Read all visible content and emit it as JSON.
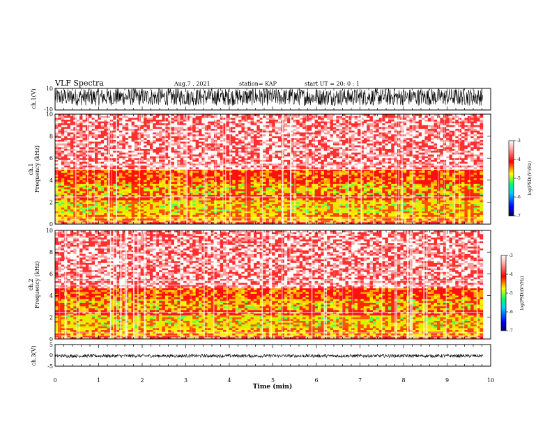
{
  "header": {
    "title": "VLF Spectra",
    "date": "Aug.7 , 2021",
    "station": "station= KAP",
    "start_ut": "start UT = 20: 0 : 1"
  },
  "colors": {
    "spectrogram_base": "#ff2a2a",
    "waveform": "#000000",
    "colormap": [
      "#000066",
      "#0000ff",
      "#00c8ff",
      "#00ff66",
      "#ffff00",
      "#ff0000",
      "#ffb0b0",
      "#ffffff"
    ]
  },
  "chart_data": [
    {
      "type": "line",
      "panel": "ch1-waveform",
      "ylabel": "ch.1(V)",
      "ylim": [
        -10,
        10
      ],
      "yticks": [
        "10",
        "-10"
      ],
      "xlim": [
        0,
        10
      ],
      "description_values": {
        "amplitude_range_v": [
          -6,
          10
        ]
      }
    },
    {
      "type": "heatmap",
      "panel": "ch1-spectrogram",
      "ylabel": "ch.1\nFrequency (kHz)",
      "ylim": [
        0,
        10
      ],
      "yticks": [
        "0",
        "2",
        "4",
        "6",
        "8",
        "10"
      ],
      "xlim": [
        0,
        10
      ],
      "data_extent_min": 9.82,
      "intense_band_khz": [
        0.3,
        5.0
      ],
      "colorbar": {
        "label": "log(PSD)(V²/Hz)",
        "range": [
          -7,
          -3
        ],
        "ticks": [
          "-3",
          "-4",
          "-5",
          "-6",
          "-7"
        ]
      }
    },
    {
      "type": "heatmap",
      "panel": "ch2-spectrogram",
      "ylabel": "ch.2\nFrequency (kHz)",
      "ylim": [
        0,
        10
      ],
      "yticks": [
        "0",
        "2",
        "4",
        "6",
        "8",
        "10"
      ],
      "xlim": [
        0,
        10
      ],
      "data_extent_min": 9.82,
      "intense_band_khz": [
        0.3,
        4.6
      ],
      "colorbar": {
        "label": "log(PSD)(V²/Hz)",
        "range": [
          -7,
          -3
        ],
        "ticks": [
          "-3",
          "-4",
          "-5",
          "-6",
          "-7"
        ]
      }
    },
    {
      "type": "line",
      "panel": "ch3-waveform",
      "ylabel": "ch.3(V)",
      "ylim": [
        -5,
        5
      ],
      "yticks": [
        "5",
        "0",
        "-5"
      ],
      "xlim": [
        0,
        10
      ],
      "xlabel": "Time (min)",
      "xticks": [
        "0",
        "1",
        "2",
        "3",
        "4",
        "5",
        "6",
        "7",
        "8",
        "9",
        "10"
      ],
      "description_values": {
        "amplitude_range_v": [
          -1.0,
          0.5
        ]
      }
    }
  ]
}
